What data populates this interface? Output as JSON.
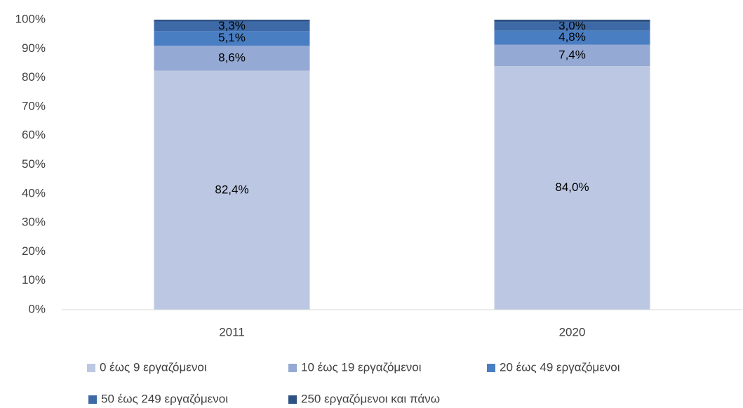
{
  "chart_data": {
    "type": "stacked_bar",
    "categories": [
      "2011",
      "2020"
    ],
    "series": [
      {
        "name": "0 έως 9 εργαζόμενοι",
        "color": "#bcc8e3",
        "values": [
          82.4,
          84.0
        ],
        "value_labels": [
          "82,4%",
          "84,0%"
        ]
      },
      {
        "name": "10 έως 19 εργαζόμενοι",
        "color": "#94a9d3",
        "values": [
          8.6,
          7.4
        ],
        "value_labels": [
          "8,6%",
          "7,4%"
        ]
      },
      {
        "name": "20 έως 49 εργαζόμενοι",
        "color": "#4a7ec2",
        "values": [
          5.1,
          4.8
        ],
        "value_labels": [
          "5,1%",
          "4,8%"
        ]
      },
      {
        "name": "50 έως 249 εργαζόμενοι",
        "color": "#3d6aa6",
        "values": [
          3.3,
          3.0
        ],
        "value_labels": [
          "3,3%",
          "3,0%"
        ]
      },
      {
        "name": "250 εργαζόμενοι και πάνω",
        "color": "#2e5284",
        "values": [
          0.6,
          0.8
        ]
      }
    ],
    "ylim": [
      0,
      100
    ],
    "yticks": [
      {
        "value": 0,
        "label": "0%"
      },
      {
        "value": 10,
        "label": "10%"
      },
      {
        "value": 20,
        "label": "20%"
      },
      {
        "value": 30,
        "label": "30%"
      },
      {
        "value": 40,
        "label": "40%"
      },
      {
        "value": 50,
        "label": "50%"
      },
      {
        "value": 60,
        "label": "60%"
      },
      {
        "value": 70,
        "label": "70%"
      },
      {
        "value": 80,
        "label": "80%"
      },
      {
        "value": 90,
        "label": "90%"
      },
      {
        "value": 100,
        "label": "100%"
      }
    ],
    "grid": false
  }
}
